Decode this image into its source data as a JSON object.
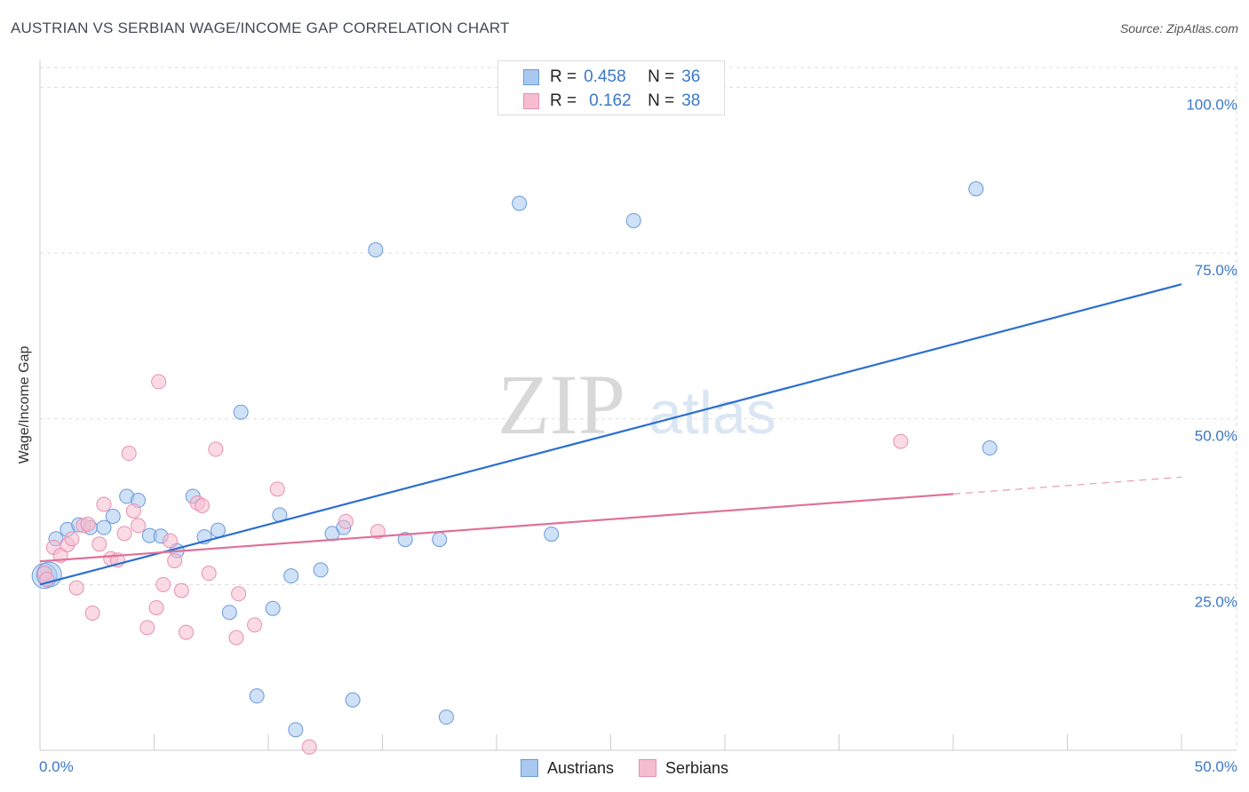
{
  "header": {
    "title": "AUSTRIAN VS SERBIAN WAGE/INCOME GAP CORRELATION CHART",
    "source": "Source: ZipAtlas.com"
  },
  "watermark": {
    "zip": "ZIP",
    "atlas": "atlas"
  },
  "legend_top": {
    "rows": [
      {
        "r_label": "R =",
        "r_value": "0.458",
        "n_label": "N =",
        "n_value": "36"
      },
      {
        "r_label": "R =",
        "r_value": "0.162",
        "n_label": "N =",
        "n_value": "38"
      }
    ]
  },
  "colors": {
    "austrians_fill": "#a8c8f0",
    "austrians_stroke": "#6a9ad8",
    "austrians_line": "#2a6fd0",
    "serbians_fill": "#f6bcd0",
    "serbians_stroke": "#e890b0",
    "serbians_line": "#e07098",
    "axis_text": "#3a78c8",
    "grid": "#dddddd"
  },
  "chart_data": {
    "type": "scatter",
    "title": "AUSTRIAN VS SERBIAN WAGE/INCOME GAP CORRELATION CHART",
    "xlabel": "",
    "ylabel": "Wage/Income Gap",
    "xlim": [
      0,
      50
    ],
    "ylim": [
      0,
      103
    ],
    "x_tick_labels": [
      "0.0%",
      "50.0%"
    ],
    "y_ticks": [
      25,
      50,
      75,
      100
    ],
    "y_tick_labels": [
      "25.0%",
      "50.0%",
      "75.0%",
      "100.0%"
    ],
    "grid": true,
    "series": [
      {
        "name": "Austrians",
        "r": 0.458,
        "n": 36,
        "points": [
          [
            0.2,
            26.3
          ],
          [
            0.7,
            31.9
          ],
          [
            1.2,
            33.3
          ],
          [
            1.7,
            34.0
          ],
          [
            2.2,
            33.6
          ],
          [
            2.8,
            33.6
          ],
          [
            3.2,
            35.3
          ],
          [
            3.8,
            38.3
          ],
          [
            4.3,
            37.7
          ],
          [
            4.8,
            32.4
          ],
          [
            5.3,
            32.3
          ],
          [
            6.0,
            30.1
          ],
          [
            6.7,
            38.3
          ],
          [
            7.2,
            32.2
          ],
          [
            7.8,
            33.2
          ],
          [
            8.3,
            20.8
          ],
          [
            8.8,
            51.0
          ],
          [
            9.5,
            8.2
          ],
          [
            10.2,
            21.4
          ],
          [
            10.5,
            35.5
          ],
          [
            11.0,
            26.3
          ],
          [
            11.2,
            3.1
          ],
          [
            12.3,
            27.2
          ],
          [
            12.8,
            32.7
          ],
          [
            13.3,
            33.6
          ],
          [
            13.7,
            7.6
          ],
          [
            14.7,
            75.5
          ],
          [
            16.0,
            31.8
          ],
          [
            17.5,
            31.8
          ],
          [
            17.8,
            5.0
          ],
          [
            21.0,
            82.5
          ],
          [
            22.4,
            32.6
          ],
          [
            26.0,
            79.9
          ],
          [
            41.0,
            84.7
          ],
          [
            41.6,
            45.6
          ],
          [
            0.4,
            26.5
          ]
        ],
        "trend": {
          "x": [
            0,
            50
          ],
          "y": [
            25.0,
            70.3
          ]
        }
      },
      {
        "name": "Serbians",
        "r": 0.162,
        "n": 38,
        "points": [
          [
            0.2,
            26.7
          ],
          [
            0.3,
            25.8
          ],
          [
            0.6,
            30.6
          ],
          [
            0.9,
            29.4
          ],
          [
            1.2,
            31.0
          ],
          [
            1.4,
            31.9
          ],
          [
            1.6,
            24.5
          ],
          [
            1.9,
            33.9
          ],
          [
            2.1,
            34.1
          ],
          [
            2.3,
            20.7
          ],
          [
            2.6,
            31.1
          ],
          [
            2.8,
            37.1
          ],
          [
            3.1,
            28.9
          ],
          [
            3.4,
            28.7
          ],
          [
            3.7,
            32.7
          ],
          [
            3.9,
            44.8
          ],
          [
            4.1,
            36.1
          ],
          [
            4.3,
            33.9
          ],
          [
            4.7,
            18.5
          ],
          [
            5.1,
            21.5
          ],
          [
            5.2,
            55.6
          ],
          [
            5.4,
            25.0
          ],
          [
            5.7,
            31.6
          ],
          [
            5.9,
            28.6
          ],
          [
            6.2,
            24.1
          ],
          [
            6.4,
            17.8
          ],
          [
            6.9,
            37.3
          ],
          [
            7.1,
            36.9
          ],
          [
            7.4,
            26.7
          ],
          [
            7.7,
            45.4
          ],
          [
            8.6,
            17.0
          ],
          [
            8.7,
            23.6
          ],
          [
            9.4,
            18.9
          ],
          [
            10.4,
            39.4
          ],
          [
            11.8,
            0.5
          ],
          [
            13.4,
            34.5
          ],
          [
            14.8,
            33.0
          ],
          [
            37.7,
            46.6
          ]
        ],
        "trend": {
          "x": [
            0,
            50
          ],
          "y": [
            28.5,
            41.2
          ],
          "solid_until_x": 40
        }
      }
    ]
  },
  "legend_bottom": {
    "items": [
      {
        "label": "Austrians"
      },
      {
        "label": "Serbians"
      }
    ]
  }
}
